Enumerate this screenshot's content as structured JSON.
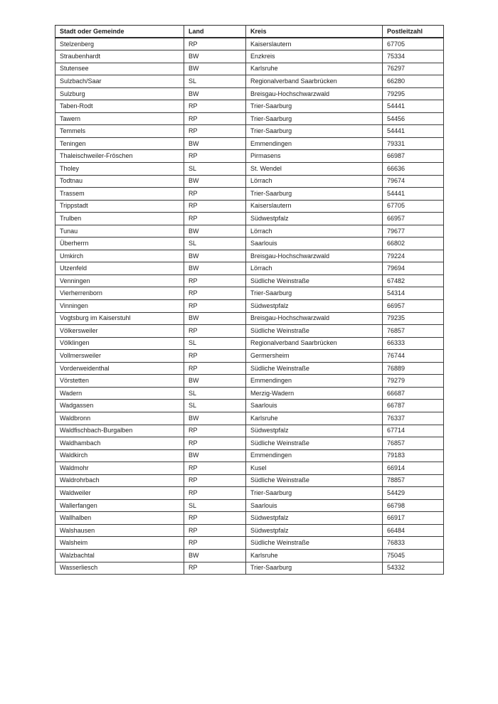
{
  "page": {
    "background_color": "#ffffff",
    "text_color": "#1c1c1c",
    "border_color": "#3c3c3c"
  },
  "table": {
    "columns": [
      "Stadt oder Gemeinde",
      "Land",
      "Kreis",
      "Postleitzahl"
    ],
    "rows": [
      [
        "Stelzenberg",
        "RP",
        "Kaiserslautern",
        "67705"
      ],
      [
        "Straubenhardt",
        "BW",
        "Enzkreis",
        "75334"
      ],
      [
        "Stutensee",
        "BW",
        "Karlsruhe",
        "76297"
      ],
      [
        "Sulzbach/Saar",
        "SL",
        "Regionalverband Saarbrücken",
        "66280"
      ],
      [
        "Sulzburg",
        "BW",
        "Breisgau-Hochschwarzwald",
        "79295"
      ],
      [
        "Taben-Rodt",
        "RP",
        "Trier-Saarburg",
        "54441"
      ],
      [
        "Tawern",
        "RP",
        "Trier-Saarburg",
        "54456"
      ],
      [
        "Temmels",
        "RP",
        "Trier-Saarburg",
        "54441"
      ],
      [
        "Teningen",
        "BW",
        "Emmendingen",
        "79331"
      ],
      [
        "Thaleischweiler-Fröschen",
        "RP",
        "Pirmasens",
        "66987"
      ],
      [
        "Tholey",
        "SL",
        "St. Wendel",
        "66636"
      ],
      [
        "Todtnau",
        "BW",
        "Lörrach",
        "79674"
      ],
      [
        "Trassem",
        "RP",
        "Trier-Saarburg",
        "54441"
      ],
      [
        "Trippstadt",
        "RP",
        "Kaiserslautern",
        "67705"
      ],
      [
        "Trulben",
        "RP",
        "Südwestpfalz",
        "66957"
      ],
      [
        "Tunau",
        "BW",
        "Lörrach",
        "79677"
      ],
      [
        "Überherrn",
        "SL",
        "Saarlouis",
        "66802"
      ],
      [
        "Umkirch",
        "BW",
        "Breisgau-Hochschwarzwald",
        "79224"
      ],
      [
        "Utzenfeld",
        "BW",
        "Lörrach",
        "79694"
      ],
      [
        "Venningen",
        "RP",
        "Südliche Weinstraße",
        "67482"
      ],
      [
        "Vierherrenborn",
        "RP",
        "Trier-Saarburg",
        "54314"
      ],
      [
        "Vinningen",
        "RP",
        "Südwestpfalz",
        "66957"
      ],
      [
        "Vogtsburg im Kaiserstuhl",
        "BW",
        "Breisgau-Hochschwarzwald",
        "79235"
      ],
      [
        "Völkersweiler",
        "RP",
        "Südliche Weinstraße",
        "76857"
      ],
      [
        "Völklingen",
        "SL",
        "Regionalverband Saarbrücken",
        "66333"
      ],
      [
        "Vollmersweiler",
        "RP",
        "Germersheim",
        "76744"
      ],
      [
        "Vorderweidenthal",
        "RP",
        "Südliche Weinstraße",
        "76889"
      ],
      [
        "Vörstetten",
        "BW",
        "Emmendingen",
        "79279"
      ],
      [
        "Wadern",
        "SL",
        "Merzig-Wadern",
        "66687"
      ],
      [
        "Wadgassen",
        "SL",
        "Saarlouis",
        "66787"
      ],
      [
        "Waldbronn",
        "BW",
        "Karlsruhe",
        "76337"
      ],
      [
        "Waldfischbach-Burgalben",
        "RP",
        "Südwestpfalz",
        "67714"
      ],
      [
        "Waldhambach",
        "RP",
        "Südliche Weinstraße",
        "76857"
      ],
      [
        "Waldkirch",
        "BW",
        "Emmendingen",
        "79183"
      ],
      [
        "Waldmohr",
        "RP",
        "Kusel",
        "66914"
      ],
      [
        "Waldrohrbach",
        "RP",
        "Südliche Weinstraße",
        "78857"
      ],
      [
        "Waldweiler",
        "RP",
        "Trier-Saarburg",
        "54429"
      ],
      [
        "Wallerfangen",
        "SL",
        "Saarlouis",
        "66798"
      ],
      [
        "Wallhalben",
        "RP",
        "Südwestpfalz",
        "66917"
      ],
      [
        "Walshausen",
        "RP",
        "Südwestpfalz",
        "66484"
      ],
      [
        "Walsheim",
        "RP",
        "Südliche Weinstraße",
        "76833"
      ],
      [
        "Walzbachtal",
        "BW",
        "Karlsruhe",
        "75045"
      ],
      [
        "Wasserliesch",
        "RP",
        "Trier-Saarburg",
        "54332"
      ]
    ]
  }
}
